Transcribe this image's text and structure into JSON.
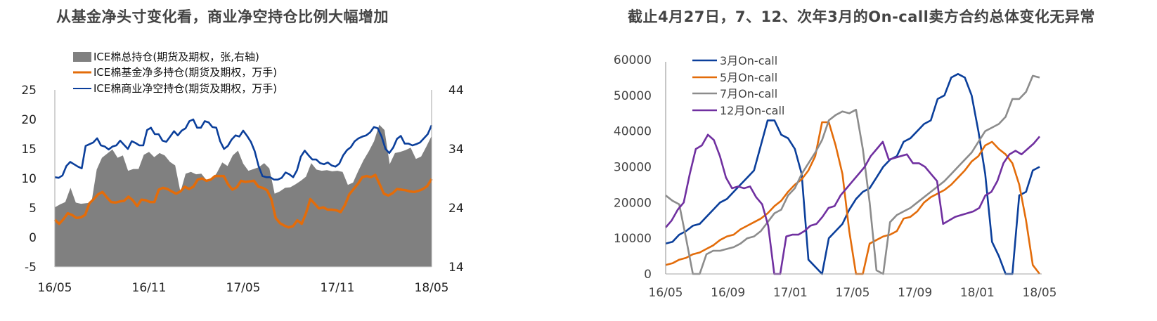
{
  "left": {
    "title": "从基金净头寸变化看，商业净空持仓比例大幅增加",
    "legend": [
      {
        "label": "ICE棉总持仓(期货及期权，张,右轴)",
        "color": "#808080",
        "type": "area"
      },
      {
        "label": "ICE棉基金净多持仓(期货及期权，万手)",
        "color": "#E36C0A",
        "type": "line"
      },
      {
        "label": "ICE棉商业净空持仓(期货及期权，万手)",
        "color": "#0B3F9B",
        "type": "line"
      }
    ]
  },
  "right": {
    "title": "截止4月27日，7、12、次年3月的On-call卖方合约总体变化无异常",
    "legend": [
      {
        "label": "3月On-call",
        "color": "#0B3F9B"
      },
      {
        "label": "5月On-call",
        "color": "#E36C0A"
      },
      {
        "label": "7月On-call",
        "color": "#8C8C8C"
      },
      {
        "label": "12月On-call",
        "color": "#7030A0"
      }
    ]
  },
  "chart_data": [
    {
      "type": "line",
      "title": "从基金净头寸变化看，商业净空持仓比例大幅增加",
      "categories": [
        "16/05",
        "16/11",
        "17/05",
        "17/11",
        "18/05"
      ],
      "ylim": [
        -5,
        25
      ],
      "yticks": [
        -5,
        0,
        5,
        10,
        15,
        20,
        25
      ],
      "y2lim": [
        14,
        44
      ],
      "y2ticks": [
        14,
        24,
        34,
        44
      ],
      "legend_position": "top",
      "grid": false,
      "series": [
        {
          "name": "ICE棉总持仓(期货及期权，张,右轴)",
          "type": "area",
          "axis": "right",
          "values": [
            24.1,
            24.6,
            25,
            27.4,
            24.9,
            24.7,
            24.8,
            24.9,
            30.5,
            32.5,
            33.2,
            33.9,
            32.5,
            32.9,
            30.3,
            30.6,
            30.6,
            33,
            33.5,
            32.6,
            33.3,
            32.9,
            31.8,
            31.2,
            26.7,
            29.8,
            30.1,
            29.7,
            29.8,
            28.7,
            28.7,
            30,
            31.7,
            31.1,
            32.9,
            33.7,
            31.5,
            30.3,
            30.6,
            30.9,
            31.6,
            30.7,
            26.4,
            26.8,
            27.4,
            27.5,
            28,
            28.6,
            29.3,
            31.6,
            30.5,
            30.3,
            30.4,
            30.2,
            30.3,
            30.1,
            27.9,
            28.3,
            30.3,
            32.1,
            33.6,
            35.3,
            38.1,
            37.2,
            31.4,
            33.3,
            33.5,
            33.8,
            34.2,
            32.3,
            32.7,
            34.4,
            36.2
          ]
        },
        {
          "name": "ICE棉基金净多持仓(期货及期权，万手)",
          "color": "#E36C0A",
          "axis": "left",
          "values": [
            3,
            2.3,
            3.1,
            4.1,
            3.8,
            3.3,
            3.4,
            3.8,
            5.8,
            6.5,
            7.3,
            7.7,
            6.8,
            6,
            5.9,
            6.1,
            6.2,
            6.9,
            6.3,
            5.3,
            6.4,
            6.3,
            6,
            6,
            8.1,
            8.4,
            8.2,
            7.8,
            7.4,
            7.8,
            8.6,
            8.2,
            8.6,
            9.8,
            10,
            9.6,
            9.8,
            10.4,
            10.4,
            10.4,
            9,
            8.1,
            8.5,
            9.6,
            9.4,
            9.5,
            9.6,
            8.6,
            8.4,
            8,
            6.5,
            3.3,
            2.4,
            2,
            1.7,
            1.9,
            2.9,
            2.3,
            4.1,
            6.5,
            5.7,
            4.9,
            5.1,
            4.7,
            4.7,
            4.6,
            4.3,
            5.5,
            7.3,
            8.2,
            9.1,
            10.2,
            10.4,
            10.2,
            10.6,
            9,
            7.4,
            7.1,
            7.5,
            8.2,
            8.1,
            8,
            7.8,
            7.7,
            7.9,
            8.2,
            8.7,
            9.9
          ]
        },
        {
          "name": "ICE棉商业净空持仓(期货及期权，万手)",
          "color": "#0B3F9B",
          "axis": "left",
          "values": [
            10.2,
            10.1,
            10.5,
            12.1,
            12.8,
            12.4,
            12,
            11.7,
            15.5,
            15.8,
            16.1,
            16.8,
            15.6,
            15.4,
            14.9,
            15.4,
            15.6,
            16.4,
            15.7,
            15,
            16.3,
            16,
            15.6,
            15.6,
            18.2,
            18.6,
            17.5,
            17.5,
            16.4,
            16.2,
            17.1,
            18,
            17.3,
            18.1,
            18.5,
            19.7,
            20,
            18.6,
            18.6,
            19.7,
            19.5,
            18.7,
            18.6,
            16.3,
            15,
            15.5,
            16.6,
            17.3,
            17.1,
            18.1,
            17.2,
            16.2,
            14.6,
            12.1,
            10.4,
            10.2,
            10.2,
            9.8,
            9.8,
            10.1,
            11,
            10.7,
            10.2,
            11.4,
            13.7,
            14.7,
            13.9,
            13.2,
            13.2,
            12.6,
            12.4,
            12.7,
            12.2,
            12,
            12.5,
            13.9,
            14.8,
            15.3,
            16.3,
            16.8,
            17.1,
            17.3,
            17.8,
            18.7,
            18.5,
            17.1,
            15,
            14.3,
            15.2,
            16.7,
            17.2,
            15.9,
            15.9,
            15.6,
            15.8,
            16.1,
            16.8,
            17.5,
            19
          ]
        }
      ]
    },
    {
      "type": "line",
      "title": "截止4月27日，7、12、次年3月的On-call卖方合约总体变化无异常",
      "categories": [
        "16/05",
        "16/09",
        "17/01",
        "17/05",
        "17/09",
        "18/01",
        "18/05"
      ],
      "ylim": [
        0,
        60000
      ],
      "yticks": [
        0,
        10000,
        20000,
        30000,
        40000,
        50000,
        60000
      ],
      "legend_position": "top-left inside",
      "grid": false,
      "series": [
        {
          "name": "3月On-call",
          "color": "#0B3F9B",
          "values": [
            8500,
            9000,
            11000,
            12000,
            13500,
            14000,
            16000,
            18000,
            20000,
            21000,
            23000,
            25000,
            27000,
            29000,
            36000,
            43000,
            43000,
            39000,
            38000,
            35000,
            28000,
            4000,
            2000,
            0,
            10000,
            12000,
            14000,
            18000,
            21000,
            23000,
            24000,
            27000,
            30000,
            32000,
            33000,
            37000,
            38000,
            40000,
            42000,
            43000,
            49000,
            50000,
            55000,
            56000,
            55000,
            50000,
            40000,
            28000,
            9000,
            5000,
            0,
            0,
            22000,
            23000,
            29000,
            30000
          ]
        },
        {
          "name": "5月On-call",
          "color": "#E36C0A",
          "values": [
            2500,
            3000,
            4000,
            4500,
            5500,
            6000,
            7000,
            8000,
            9500,
            10500,
            11000,
            12500,
            13500,
            14500,
            15500,
            17000,
            19000,
            20500,
            23000,
            25000,
            26500,
            29000,
            33000,
            42500,
            42500,
            36000,
            28000,
            12000,
            0,
            0,
            8500,
            9500,
            10500,
            11000,
            12000,
            15500,
            16000,
            17500,
            20000,
            21500,
            22500,
            23500,
            25000,
            27000,
            29000,
            31500,
            33000,
            36000,
            37000,
            35000,
            33500,
            31000,
            25000,
            15000,
            2500,
            0
          ]
        },
        {
          "name": "7月On-call",
          "color": "#8C8C8C",
          "values": [
            22000,
            20500,
            19500,
            10000,
            0,
            0,
            5500,
            6500,
            6500,
            7000,
            7500,
            8500,
            10000,
            10500,
            12000,
            14500,
            17000,
            18000,
            22000,
            24000,
            28000,
            31000,
            34000,
            37500,
            43000,
            44500,
            45500,
            45000,
            46000,
            35000,
            20000,
            1000,
            0,
            14500,
            16500,
            17500,
            18500,
            20000,
            21500,
            23000,
            24500,
            26000,
            28000,
            30000,
            32000,
            34000,
            37000,
            40000,
            41000,
            42000,
            44000,
            49000,
            49000,
            51000,
            55500,
            55000
          ]
        },
        {
          "name": "12月On-call",
          "color": "#7030A0",
          "values": [
            13000,
            15000,
            18000,
            20000,
            28000,
            35000,
            36000,
            39000,
            37500,
            33000,
            27000,
            24000,
            24500,
            24000,
            24500,
            21500,
            19500,
            13500,
            0,
            0,
            10500,
            11000,
            11000,
            12000,
            13500,
            14000,
            16000,
            18500,
            19000,
            22000,
            24000,
            26000,
            28000,
            30000,
            33000,
            35000,
            37000,
            32000,
            32500,
            33000,
            33500,
            31000,
            31000,
            30000,
            28000,
            26000,
            14000,
            15000,
            16000,
            16500,
            17000,
            17500,
            18500,
            22000,
            23000,
            26000,
            31000,
            33500,
            34500,
            33500,
            35000,
            36500,
            38500
          ]
        }
      ]
    }
  ]
}
